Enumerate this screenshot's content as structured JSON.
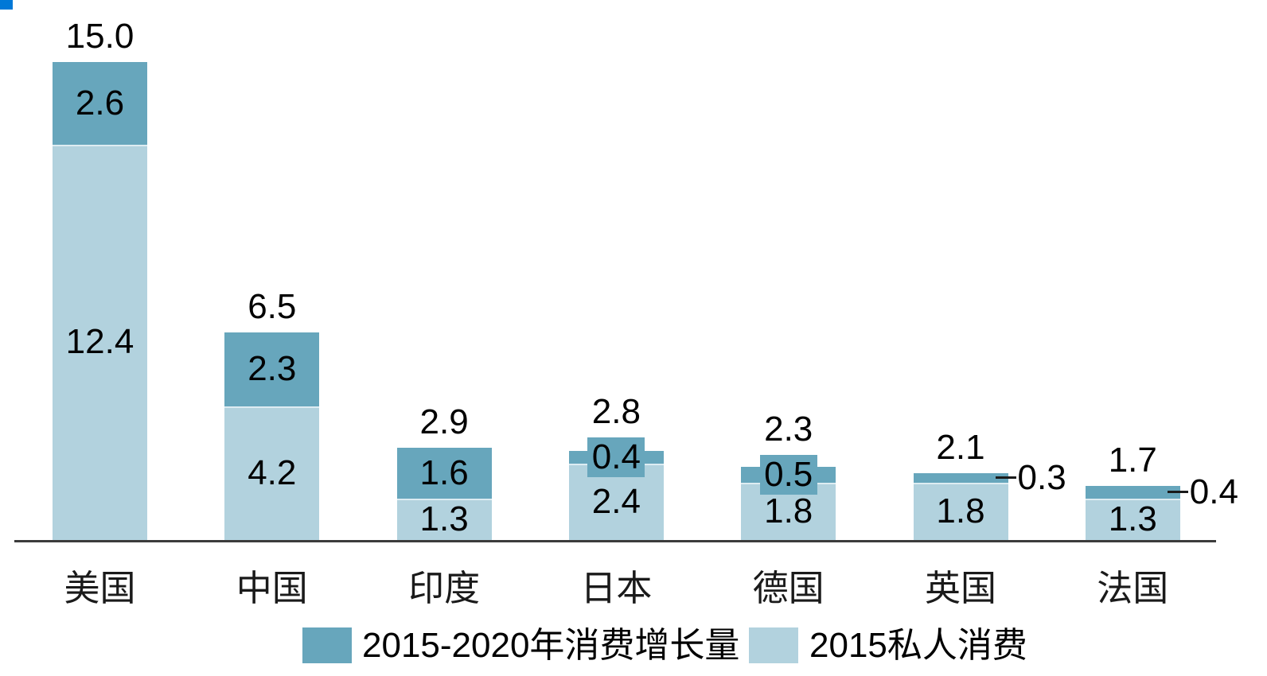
{
  "accent": {
    "color": "#0078d7"
  },
  "colors": {
    "growth": "#67a6bc",
    "base": "#b2d2de",
    "separator": "#ddecf2",
    "axis": "#3c3c3c",
    "leader": "#1a1a1a",
    "text": "#000000"
  },
  "chart_data": {
    "type": "bar",
    "stacked": true,
    "orientation": "vertical",
    "title": "",
    "xlabel": "",
    "ylabel": "",
    "grid": false,
    "legend_position": "bottom",
    "ylim": [
      0,
      15.6
    ],
    "categories": [
      "美国",
      "中国",
      "印度",
      "日本",
      "德国",
      "英国",
      "法国"
    ],
    "series": [
      {
        "name": "2015-2020年消费增长量",
        "color": "#67a6bc",
        "values": [
          2.6,
          2.3,
          1.6,
          0.4,
          0.5,
          0.3,
          0.4
        ]
      },
      {
        "name": "2015私人消费",
        "color": "#b2d2de",
        "values": [
          12.4,
          4.2,
          1.3,
          2.4,
          1.8,
          1.8,
          1.3
        ]
      }
    ],
    "totals": [
      15.0,
      6.5,
      2.9,
      2.8,
      2.3,
      2.1,
      1.7
    ],
    "total_labels": [
      "15.0",
      "6.5",
      "2.9",
      "2.8",
      "2.3",
      "2.1",
      "1.7"
    ],
    "growth_labels": [
      "2.6",
      "2.3",
      "1.6",
      "0.4",
      "0.5",
      "0.3",
      "0.4"
    ],
    "base_labels": [
      "12.4",
      "4.2",
      "1.3",
      "2.4",
      "1.8",
      "1.8",
      "1.3"
    ],
    "growth_label_modes": [
      "inside",
      "inside",
      "inside",
      "plate",
      "plate",
      "leader",
      "leader"
    ]
  },
  "legend": {
    "items": [
      {
        "label": "2015-2020年消费增长量",
        "swatch": "growth"
      },
      {
        "label": "2015私人消费",
        "swatch": "base"
      }
    ]
  }
}
